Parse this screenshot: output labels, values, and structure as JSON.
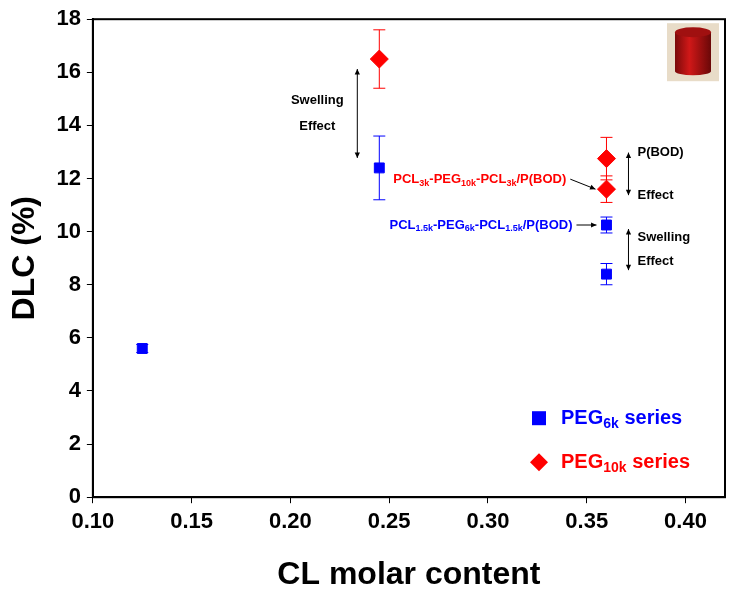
{
  "chart_data": {
    "type": "scatter",
    "x_label": "CL molar content",
    "y_label": "DLC (%)",
    "xlim": [
      0.1,
      0.42
    ],
    "xticks": [
      {
        "value": 0.1,
        "label": "0.10"
      },
      {
        "value": 0.15,
        "label": "0.15"
      },
      {
        "value": 0.2,
        "label": "0.20"
      },
      {
        "value": 0.25,
        "label": "0.25"
      },
      {
        "value": 0.3,
        "label": "0.30"
      },
      {
        "value": 0.35,
        "label": "0.35"
      },
      {
        "value": 0.4,
        "label": "0.40"
      }
    ],
    "ylim": [
      0,
      18
    ],
    "yticks": [
      0,
      2,
      4,
      6,
      8,
      10,
      12,
      14,
      16,
      18
    ],
    "grid": false,
    "legend": "lower right",
    "series": [
      {
        "name": "PEG6k series",
        "color": "#0000ff",
        "marker": "square",
        "x": [
          0.125,
          0.245,
          0.36,
          0.36
        ],
        "values": [
          5.6,
          12.4,
          10.25,
          8.4
        ],
        "errors": [
          0.15,
          1.2,
          0.3,
          0.4
        ]
      },
      {
        "name": "PEG10k series",
        "color": "#ff0000",
        "marker": "diamond",
        "x": [
          0.245,
          0.36,
          0.36
        ],
        "values": [
          16.5,
          12.75,
          11.6
        ],
        "errors": [
          1.1,
          0.8,
          0.5
        ]
      }
    ],
    "annotations": [
      "Swelling Effect",
      "PCL3k-PEG10k-PCL3k/P(BOD)",
      "PCL1.5k-PEG6k-PCL1.5k/P(BOD)",
      "P(BOD) Effect",
      "Swelling Effect"
    ]
  }
}
